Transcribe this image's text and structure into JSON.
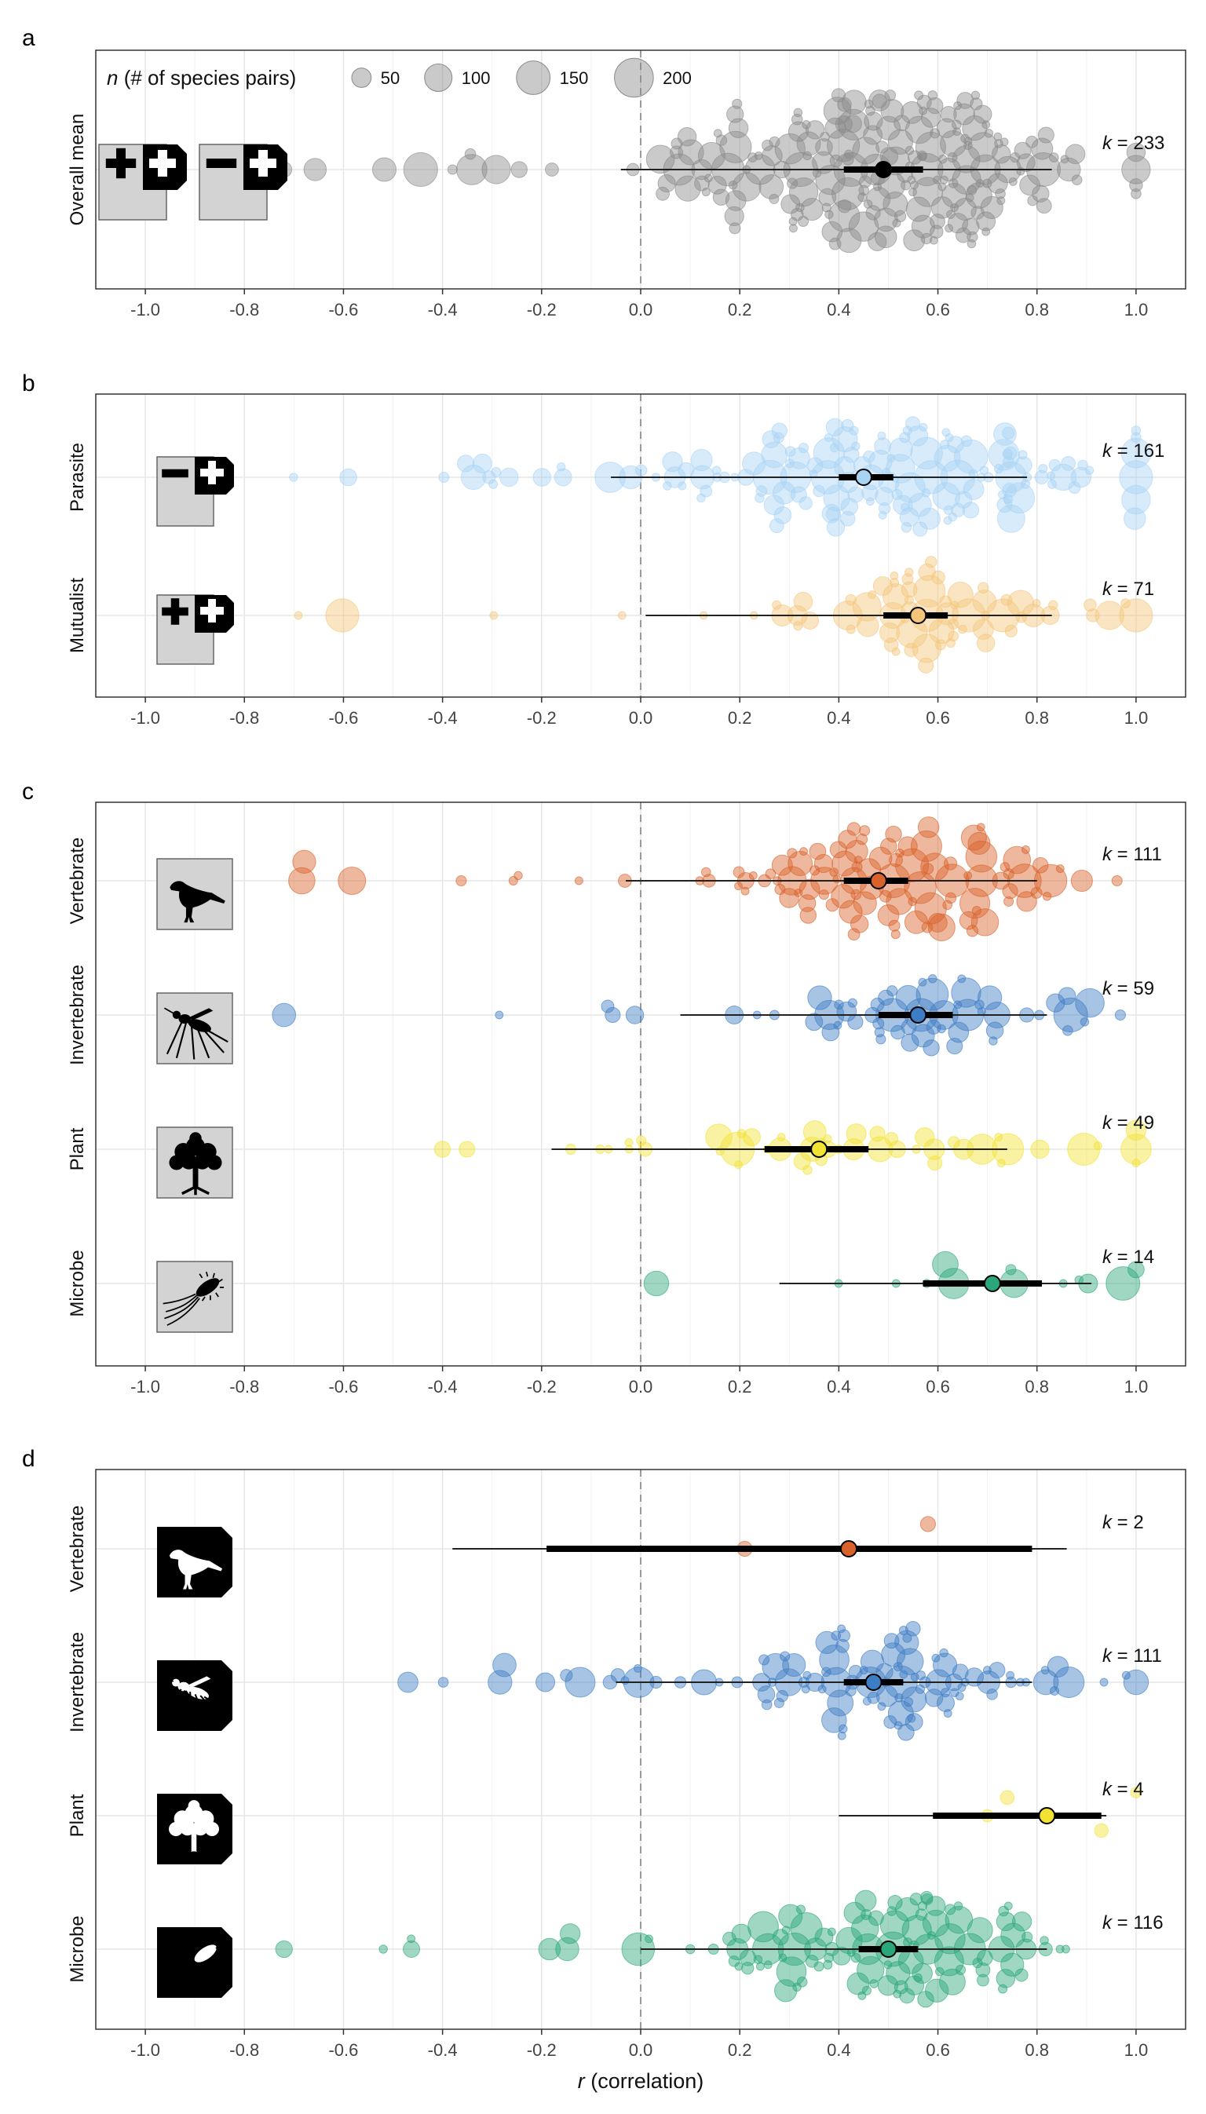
{
  "xaxis": {
    "prefix": "r",
    "suffix": " (correlation)"
  },
  "legend": {
    "title_var": "n",
    "title_rest": " (# of species pairs)",
    "sizes": [
      50,
      100,
      150,
      200
    ]
  },
  "colors": {
    "overall": "#8a8a8a",
    "parasite": "#a9d3f5",
    "mutualist": "#f5c67a",
    "vertebrate": "#d9622b",
    "invertebrate": "#3d7dc4",
    "plant": "#f2e233",
    "microbe": "#2aa77a"
  },
  "chart_data": [
    {
      "panel": "a",
      "type": "scatter",
      "xlim": [
        -1.1,
        1.1
      ],
      "xticks": [
        "-1.0",
        "-0.8",
        "-0.6",
        "-0.4",
        "-0.2",
        "0.0",
        "0.2",
        "0.4",
        "0.6",
        "0.8",
        "1.0"
      ],
      "legend": "top-left",
      "rows": [
        {
          "label": "Overall mean",
          "k_text": "233",
          "color_key": "overall",
          "icon": "plusplus-minusplus",
          "estimate": 0.49,
          "ci": [
            0.41,
            0.57
          ],
          "pi": [
            -0.04,
            0.83
          ]
        }
      ]
    },
    {
      "panel": "b",
      "type": "scatter",
      "xlim": [
        -1.1,
        1.1
      ],
      "xticks": [
        "-1.0",
        "-0.8",
        "-0.6",
        "-0.4",
        "-0.2",
        "0.0",
        "0.2",
        "0.4",
        "0.6",
        "0.8",
        "1.0"
      ],
      "rows": [
        {
          "label": "Parasite",
          "k_text": "161",
          "color_key": "parasite",
          "icon": "minusplus",
          "estimate": 0.45,
          "ci": [
            0.4,
            0.51
          ],
          "pi": [
            -0.06,
            0.78
          ]
        },
        {
          "label": "Mutualist",
          "k_text": "71",
          "color_key": "mutualist",
          "icon": "plusplus",
          "estimate": 0.56,
          "ci": [
            0.49,
            0.62
          ],
          "pi": [
            0.01,
            0.83
          ]
        }
      ]
    },
    {
      "panel": "c",
      "type": "scatter",
      "xlim": [
        -1.1,
        1.1
      ],
      "xticks": [
        "-1.0",
        "-0.8",
        "-0.6",
        "-0.4",
        "-0.2",
        "0.0",
        "0.2",
        "0.4",
        "0.6",
        "0.8",
        "1.0"
      ],
      "rows": [
        {
          "label": "Vertebrate",
          "k_text": "111",
          "color_key": "vertebrate",
          "icon": "bird",
          "estimate": 0.48,
          "ci": [
            0.41,
            0.54
          ],
          "pi": [
            -0.03,
            0.8
          ]
        },
        {
          "label": "Invertebrate",
          "k_text": "59",
          "color_key": "invertebrate",
          "icon": "mosquito",
          "estimate": 0.56,
          "ci": [
            0.48,
            0.63
          ],
          "pi": [
            0.08,
            0.82
          ]
        },
        {
          "label": "Plant",
          "k_text": "49",
          "color_key": "plant",
          "icon": "tree",
          "estimate": 0.36,
          "ci": [
            0.25,
            0.46
          ],
          "pi": [
            -0.18,
            0.74
          ]
        },
        {
          "label": "Microbe",
          "k_text": "14",
          "color_key": "microbe",
          "icon": "microbe",
          "estimate": 0.71,
          "ci": [
            0.57,
            0.81
          ],
          "pi": [
            0.28,
            0.91
          ]
        }
      ]
    },
    {
      "panel": "d",
      "type": "scatter",
      "xlim": [
        -1.1,
        1.1
      ],
      "xticks": [
        "-1.0",
        "-0.8",
        "-0.6",
        "-0.4",
        "-0.2",
        "0.0",
        "0.2",
        "0.4",
        "0.6",
        "0.8",
        "1.0"
      ],
      "rows": [
        {
          "label": "Vertebrate",
          "k_text": "2",
          "color_key": "vertebrate",
          "icon": "bird",
          "estimate": 0.42,
          "ci": [
            -0.19,
            0.79
          ],
          "pi": [
            -0.38,
            0.86
          ],
          "points": [
            {
              "x": 0.21,
              "n": 30,
              "j": 0.0
            },
            {
              "x": 0.58,
              "n": 30,
              "j": -0.3
            }
          ]
        },
        {
          "label": "Invertebrate",
          "k_text": "111",
          "color_key": "invertebrate",
          "icon": "mosquito",
          "estimate": 0.47,
          "ci": [
            0.41,
            0.53
          ],
          "pi": [
            -0.05,
            0.79
          ]
        },
        {
          "label": "Plant",
          "k_text": "4",
          "color_key": "plant",
          "icon": "tree",
          "estimate": 0.82,
          "ci": [
            0.59,
            0.93
          ],
          "pi": [
            0.4,
            0.94
          ],
          "points": [
            {
              "x": 0.7,
              "n": 20,
              "j": 0.0
            },
            {
              "x": 0.74,
              "n": 25,
              "j": -0.22
            },
            {
              "x": 0.93,
              "n": 25,
              "j": 0.18
            },
            {
              "x": 1.0,
              "n": 15,
              "j": -0.28
            }
          ]
        },
        {
          "label": "Microbe",
          "k_text": "116",
          "color_key": "microbe",
          "icon": "microbe",
          "estimate": 0.5,
          "ci": [
            0.44,
            0.56
          ],
          "pi": [
            0.0,
            0.82
          ]
        }
      ]
    }
  ]
}
